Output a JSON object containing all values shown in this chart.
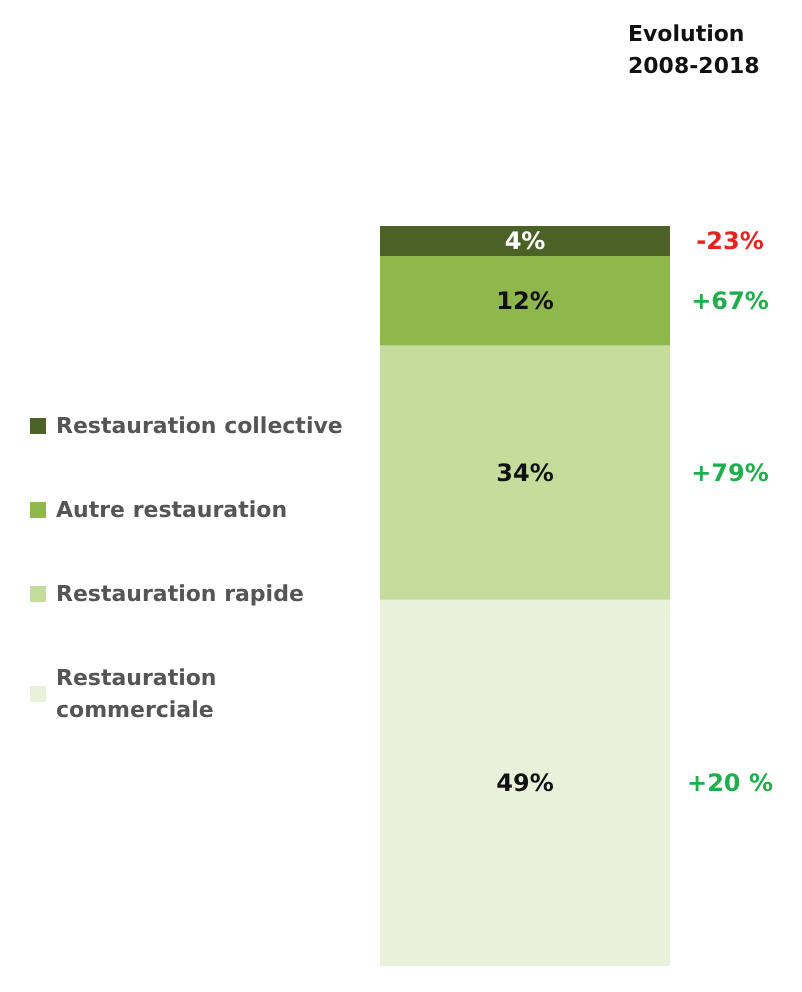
{
  "chart_data": {
    "type": "bar",
    "title": "Evolution 2008-2018",
    "categories": [
      null
    ],
    "stacked": true,
    "ylim": [
      0,
      99
    ],
    "tick_labels": false,
    "legend": "left",
    "series": [
      {
        "name": "Restauration commerciale",
        "color": "#e9f1da",
        "values": [
          49
        ],
        "value_labels": [
          "49%"
        ]
      },
      {
        "name": "Restauration rapide",
        "color": "#c4dc9c",
        "values": [
          34
        ],
        "value_labels": [
          "34%"
        ]
      },
      {
        "name": "Autre restauration",
        "color": "#8fb84c",
        "values": [
          12
        ],
        "value_labels": [
          "12%"
        ]
      },
      {
        "name": "Restauration collective",
        "color": "#4b6125",
        "values": [
          4
        ],
        "value_labels": [
          "4%"
        ]
      }
    ],
    "annotations": [
      "-23%",
      "+67%",
      "+79%",
      "+20 %"
    ]
  }
}
